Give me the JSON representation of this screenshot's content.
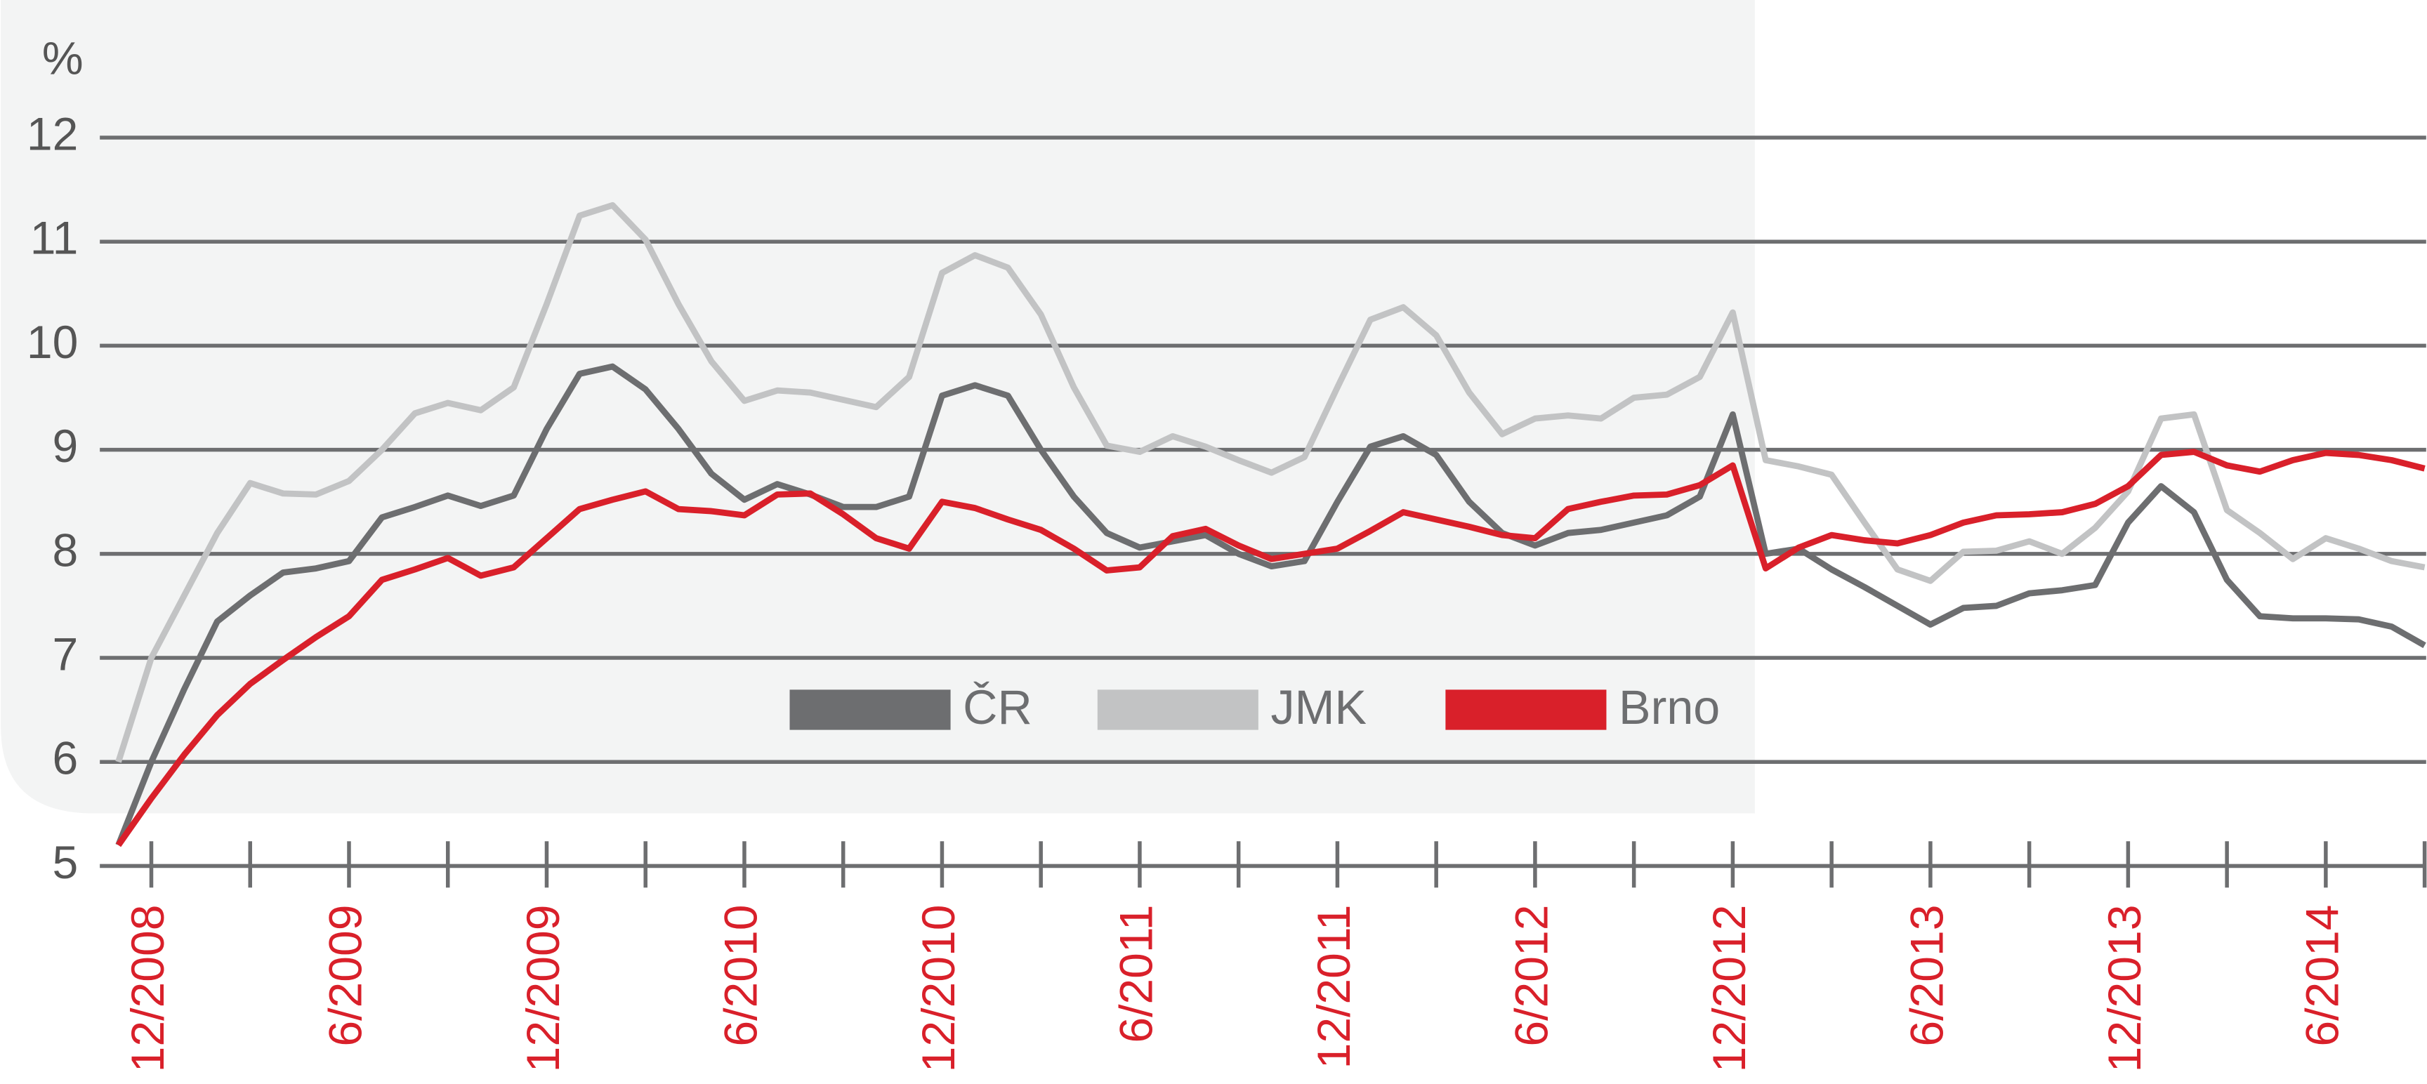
{
  "chart_data": {
    "type": "line",
    "y_label": "%",
    "categories": [
      null,
      "12/2008",
      null,
      null,
      null,
      null,
      null,
      "6/2009",
      null,
      null,
      null,
      null,
      null,
      "12/2009",
      null,
      null,
      null,
      null,
      null,
      "6/2010",
      null,
      null,
      null,
      null,
      null,
      "12/2010",
      null,
      null,
      null,
      null,
      null,
      "6/2011",
      null,
      null,
      null,
      null,
      null,
      "12/2011",
      null,
      null,
      null,
      null,
      null,
      "6/2012",
      null,
      null,
      null,
      null,
      null,
      "12/2012",
      null,
      null,
      null,
      null,
      null,
      "6/2013",
      null,
      null,
      null,
      null,
      null,
      "12/2013",
      null,
      null,
      null,
      null,
      null,
      "6/2014",
      null,
      null,
      null
    ],
    "series": [
      {
        "name": "ČR",
        "color": "#6d6e70",
        "values": [
          5.2,
          6.0,
          6.7,
          7.35,
          7.6,
          7.82,
          7.86,
          7.93,
          8.35,
          8.45,
          8.56,
          8.46,
          8.56,
          9.2,
          9.73,
          9.8,
          9.58,
          9.2,
          8.77,
          8.52,
          8.67,
          8.57,
          8.45,
          8.45,
          8.55,
          9.52,
          9.62,
          9.52,
          9.0,
          8.55,
          8.2,
          8.06,
          8.12,
          8.18,
          8.0,
          7.88,
          7.93,
          8.5,
          9.03,
          9.13,
          8.95,
          8.5,
          8.2,
          8.08,
          8.2,
          8.23,
          8.3,
          8.37,
          8.55,
          9.34,
          8.0,
          8.05,
          7.85,
          7.68,
          7.5,
          7.32,
          7.48,
          7.5,
          7.62,
          7.65,
          7.7,
          8.3,
          8.65,
          8.4,
          7.75,
          7.4,
          7.38,
          7.38,
          7.37,
          7.3,
          7.12
        ]
      },
      {
        "name": "JMK",
        "color": "#c2c3c4",
        "values": [
          6.0,
          7.0,
          7.6,
          8.2,
          8.68,
          8.58,
          8.57,
          8.7,
          9.0,
          9.35,
          9.45,
          9.38,
          9.6,
          10.4,
          11.25,
          11.35,
          11.02,
          10.4,
          9.85,
          9.47,
          9.57,
          9.55,
          9.48,
          9.41,
          9.7,
          10.7,
          10.87,
          10.75,
          10.3,
          9.6,
          9.04,
          8.98,
          9.13,
          9.03,
          8.9,
          8.78,
          8.93,
          9.6,
          10.25,
          10.37,
          10.1,
          9.55,
          9.15,
          9.3,
          9.33,
          9.3,
          9.5,
          9.53,
          9.7,
          10.32,
          8.9,
          8.84,
          8.76,
          8.3,
          7.85,
          7.74,
          8.02,
          8.03,
          8.12,
          8.0,
          8.25,
          8.6,
          9.3,
          9.34,
          8.42,
          8.2,
          7.95,
          8.15,
          8.05,
          7.93,
          7.87
        ]
      },
      {
        "name": "Brno",
        "color": "#d9202a",
        "values": [
          5.2,
          5.65,
          6.07,
          6.45,
          6.75,
          6.98,
          7.2,
          7.4,
          7.75,
          7.85,
          7.96,
          7.79,
          7.87,
          8.15,
          8.43,
          8.52,
          8.6,
          8.43,
          8.41,
          8.37,
          8.57,
          8.58,
          8.38,
          8.15,
          8.05,
          8.5,
          8.44,
          8.33,
          8.23,
          8.05,
          7.84,
          7.87,
          8.17,
          8.24,
          8.08,
          7.95,
          8.0,
          8.05,
          8.22,
          8.4,
          8.33,
          8.26,
          8.18,
          8.15,
          8.43,
          8.5,
          8.56,
          8.57,
          8.66,
          8.85,
          7.86,
          8.06,
          8.18,
          8.13,
          8.1,
          8.18,
          8.3,
          8.37,
          8.38,
          8.4,
          8.48,
          8.65,
          8.95,
          8.98,
          8.85,
          8.79,
          8.9,
          8.97,
          8.95,
          8.9,
          8.82
        ]
      }
    ],
    "ylim": [
      5,
      12
    ],
    "yticks": [
      5,
      6,
      7,
      8,
      9,
      10,
      11,
      12
    ],
    "grid": true,
    "legend": "center",
    "tick_label_color": "#d9202a"
  }
}
